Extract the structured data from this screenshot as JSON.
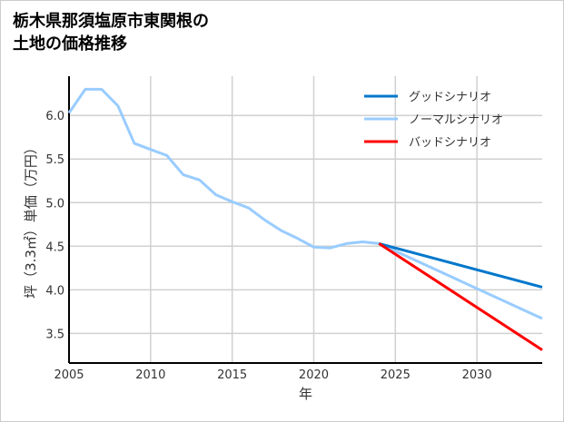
{
  "chart_data": {
    "type": "line",
    "title_lines": [
      "栃木県那須塩原市東関根の",
      "土地の価格推移"
    ],
    "xlabel": "年",
    "ylabel": "坪（3.3㎡）単価（万円）",
    "xlim": [
      2005,
      2034
    ],
    "ylim": [
      3.16,
      6.45
    ],
    "xticks": [
      2005,
      2010,
      2015,
      2020,
      2025,
      2030
    ],
    "yticks": [
      3.5,
      4.0,
      4.5,
      5.0,
      5.5,
      6.0
    ],
    "grid": true,
    "legend_position": "top-right",
    "series": [
      {
        "name": "グッドシナリオ",
        "color": "#0077cc",
        "x": [
          2024,
          2034
        ],
        "y": [
          4.53,
          4.03
        ]
      },
      {
        "name": "ノーマルシナリオ",
        "color": "#99ccff",
        "x": [
          2005,
          2006,
          2007,
          2008,
          2009,
          2010,
          2011,
          2012,
          2013,
          2014,
          2015,
          2016,
          2017,
          2018,
          2019,
          2020,
          2021,
          2022,
          2023,
          2024,
          2034
        ],
        "y": [
          6.03,
          6.3,
          6.3,
          6.11,
          5.68,
          5.61,
          5.54,
          5.32,
          5.26,
          5.09,
          5.01,
          4.94,
          4.8,
          4.68,
          4.59,
          4.49,
          4.48,
          4.53,
          4.55,
          4.53,
          3.67
        ]
      },
      {
        "name": "バッドシナリオ",
        "color": "#ff0000",
        "x": [
          2024,
          2034
        ],
        "y": [
          4.53,
          3.31
        ]
      }
    ]
  }
}
